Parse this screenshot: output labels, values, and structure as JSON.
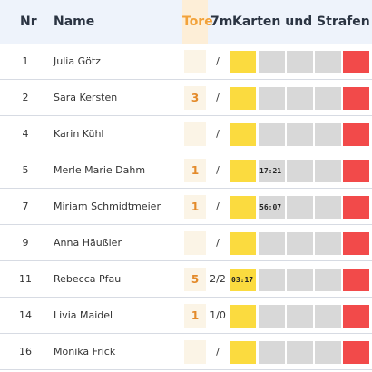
{
  "header": {
    "nr": "Nr",
    "name": "Name",
    "tore": "Tore",
    "sevenm": "7m",
    "karten": "Karten und Strafen"
  },
  "colors": {
    "header_bg": "#eef3fb",
    "tore_accent": "#f2a23a",
    "yellow_card": "#fbdb3f",
    "penalty_empty": "#d8d8d8",
    "red_card": "#f24a4a"
  },
  "players": [
    {
      "nr": "1",
      "name": "Julia Götz",
      "tore": "",
      "sevenm": "/",
      "yellow": "",
      "p1": "",
      "p2": "",
      "p3": ""
    },
    {
      "nr": "2",
      "name": "Sara Kersten",
      "tore": "3",
      "sevenm": "/",
      "yellow": "",
      "p1": "",
      "p2": "",
      "p3": ""
    },
    {
      "nr": "4",
      "name": "Karin Kühl",
      "tore": "",
      "sevenm": "/",
      "yellow": "",
      "p1": "",
      "p2": "",
      "p3": ""
    },
    {
      "nr": "5",
      "name": "Merle Marie Dahm",
      "tore": "1",
      "sevenm": "/",
      "yellow": "",
      "p1": "17:21",
      "p2": "",
      "p3": ""
    },
    {
      "nr": "7",
      "name": "Miriam Schmidtmeier",
      "tore": "1",
      "sevenm": "/",
      "yellow": "",
      "p1": "56:07",
      "p2": "",
      "p3": ""
    },
    {
      "nr": "9",
      "name": "Anna Häußler",
      "tore": "",
      "sevenm": "/",
      "yellow": "",
      "p1": "",
      "p2": "",
      "p3": ""
    },
    {
      "nr": "11",
      "name": "Rebecca Pfau",
      "tore": "5",
      "sevenm": "2/2",
      "yellow": "03:17",
      "p1": "",
      "p2": "",
      "p3": ""
    },
    {
      "nr": "14",
      "name": "Livia Maidel",
      "tore": "1",
      "sevenm": "1/0",
      "yellow": "",
      "p1": "",
      "p2": "",
      "p3": ""
    },
    {
      "nr": "16",
      "name": "Monika Frick",
      "tore": "",
      "sevenm": "/",
      "yellow": "",
      "p1": "",
      "p2": "",
      "p3": ""
    }
  ]
}
